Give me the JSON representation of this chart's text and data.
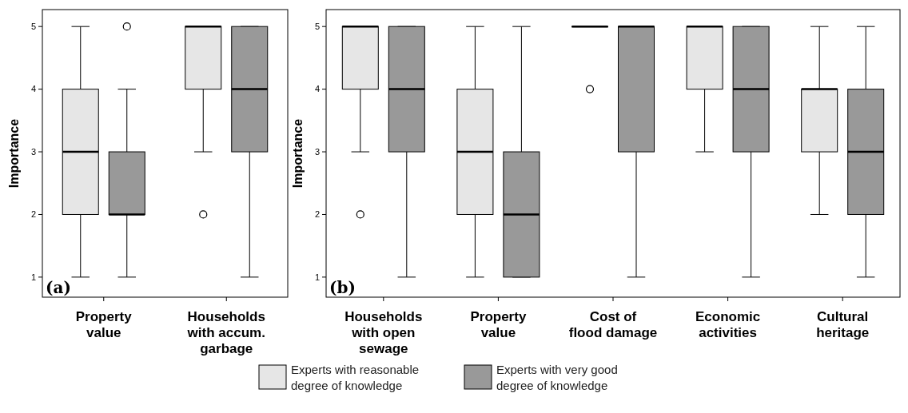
{
  "chart_data": [
    {
      "type": "box",
      "ylabel": "Importance",
      "categories": [
        "Property value",
        "Households with accum. garbage"
      ],
      "ylim": [
        0.68,
        5.27
      ],
      "yticks": [
        1,
        2,
        3,
        4,
        5
      ],
      "grid": false,
      "legend": false,
      "annotations": [
        "(a)"
      ],
      "series": [
        {
          "color": "#e6e6e6",
          "boxes": [
            {
              "low": 1,
              "q1": 2,
              "median": 3,
              "q3": 4,
              "high": 5
            },
            {
              "low": 3,
              "q1": 4,
              "median": 5,
              "q3": 5,
              "high": 5,
              "outliers": [
                2
              ]
            }
          ]
        },
        {
          "color": "#999999",
          "boxes": [
            {
              "low": 1,
              "q1": 2,
              "median": 2,
              "q3": 3,
              "high": 4,
              "outliers": [
                5
              ]
            },
            {
              "low": 1,
              "q1": 3,
              "median": 4,
              "q3": 5,
              "high": 5
            }
          ]
        }
      ]
    },
    {
      "type": "box",
      "ylabel": "Importance",
      "categories": [
        "Households with open sewage",
        "Property value",
        "Cost of flood damage",
        "Economic activities",
        "Cultural heritage"
      ],
      "ylim": [
        0.68,
        5.27
      ],
      "yticks": [
        1,
        2,
        3,
        4,
        5
      ],
      "grid": false,
      "legend": "bottom",
      "annotations": [
        "(b)"
      ],
      "series": [
        {
          "name": "Experts with reasonable degree of knowledge",
          "color": "#e6e6e6",
          "boxes": [
            {
              "low": 3,
              "q1": 4,
              "median": 5,
              "q3": 5,
              "high": 5,
              "outliers": [
                2
              ]
            },
            {
              "low": 1,
              "q1": 2,
              "median": 3,
              "q3": 4,
              "high": 5
            },
            {
              "low": 5,
              "q1": 5,
              "median": 5,
              "q3": 5,
              "high": 5,
              "outliers": [
                4
              ]
            },
            {
              "low": 3,
              "q1": 4,
              "median": 5,
              "q3": 5,
              "high": 5
            },
            {
              "low": 2,
              "q1": 3,
              "median": 4,
              "q3": 4,
              "high": 5
            }
          ]
        },
        {
          "name": "Experts with very good degree of knowledge",
          "color": "#999999",
          "boxes": [
            {
              "low": 1,
              "q1": 3,
              "median": 4,
              "q3": 5,
              "high": 5
            },
            {
              "low": 1,
              "q1": 1,
              "median": 2,
              "q3": 3,
              "high": 5
            },
            {
              "low": 1,
              "q1": 3,
              "median": 5,
              "q3": 5,
              "high": 5
            },
            {
              "low": 1,
              "q1": 3,
              "median": 4,
              "q3": 5,
              "high": 5
            },
            {
              "low": 1,
              "q1": 2,
              "median": 3,
              "q3": 4,
              "high": 5
            }
          ]
        }
      ]
    }
  ]
}
